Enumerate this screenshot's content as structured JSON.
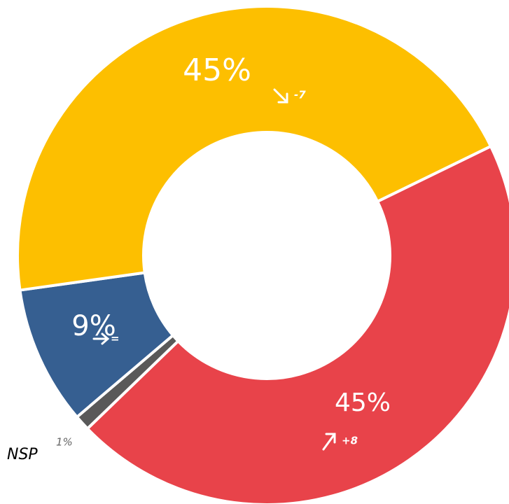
{
  "chart_data": {
    "type": "donut",
    "categories": [
      null,
      "NSP",
      null,
      null
    ],
    "values": [
      45,
      1,
      9,
      45
    ],
    "value_labels": [
      "45%",
      "1%",
      "9%",
      "45%"
    ],
    "changes": [
      "+8",
      null,
      "=",
      "-7"
    ],
    "colors": [
      "#e8434a",
      "#595959",
      "#365f91",
      "#fdbf00"
    ]
  }
}
